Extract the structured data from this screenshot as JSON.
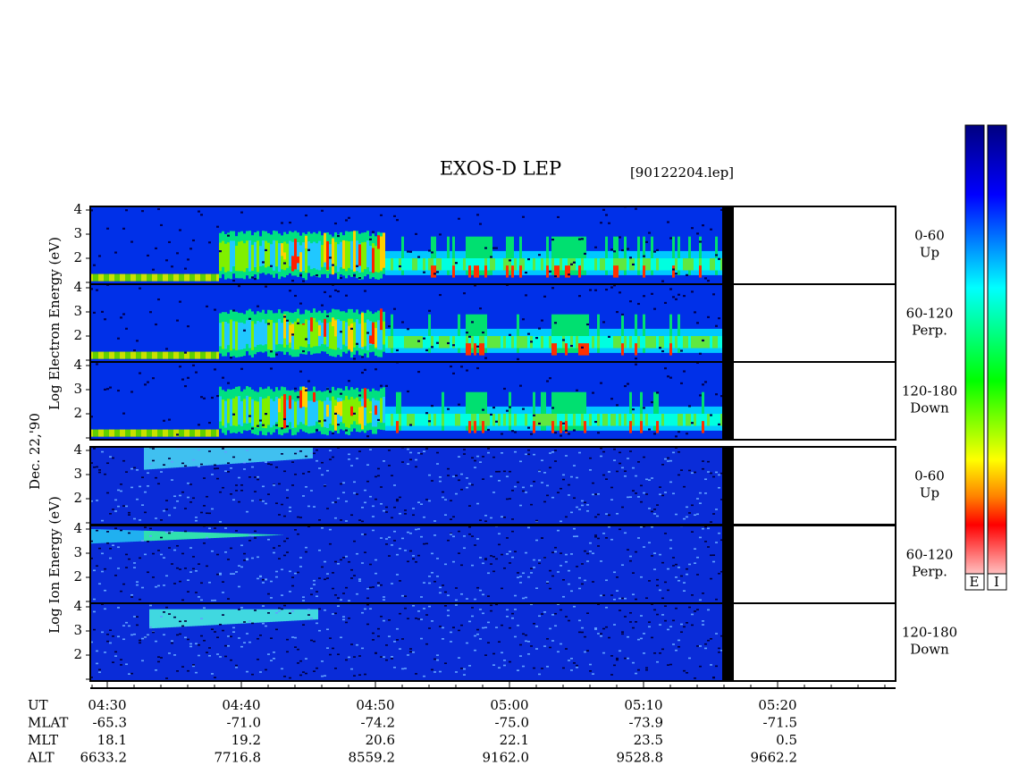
{
  "title": "EXOS-D LEP",
  "file": "[90122204.lep]",
  "electron_axis_label": "Log  Electron  Energy (eV)",
  "ion_axis_label": "Log  Ion  Energy (eV)",
  "date": "Dec. 22,'90",
  "yticks": [
    4,
    3,
    2
  ],
  "panels": [
    {
      "label": "0-60",
      "sub": "Up"
    },
    {
      "label": "60-120",
      "sub": "Perp."
    },
    {
      "label": "120-180",
      "sub": "Down"
    },
    {
      "label": "0-60",
      "sub": "Up"
    },
    {
      "label": "60-120",
      "sub": "Perp."
    },
    {
      "label": "120-180",
      "sub": "Down"
    }
  ],
  "colorbar_labels": [
    "E",
    "I"
  ],
  "table": {
    "rows": [
      {
        "name": "UT",
        "values": [
          "04:30",
          "04:40",
          "04:50",
          "05:00",
          "05:10",
          "05:20"
        ]
      },
      {
        "name": "MLAT",
        "values": [
          "-65.3",
          "-71.0",
          "-74.2",
          "-75.0",
          "-73.9",
          "-71.5"
        ]
      },
      {
        "name": "MLT",
        "values": [
          "18.1",
          "19.2",
          "20.6",
          "22.1",
          "23.5",
          "0.5"
        ]
      },
      {
        "name": "ALT",
        "values": [
          "6633.2",
          "7716.8",
          "8559.2",
          "9162.0",
          "9528.8",
          "9662.2"
        ]
      }
    ]
  }
}
